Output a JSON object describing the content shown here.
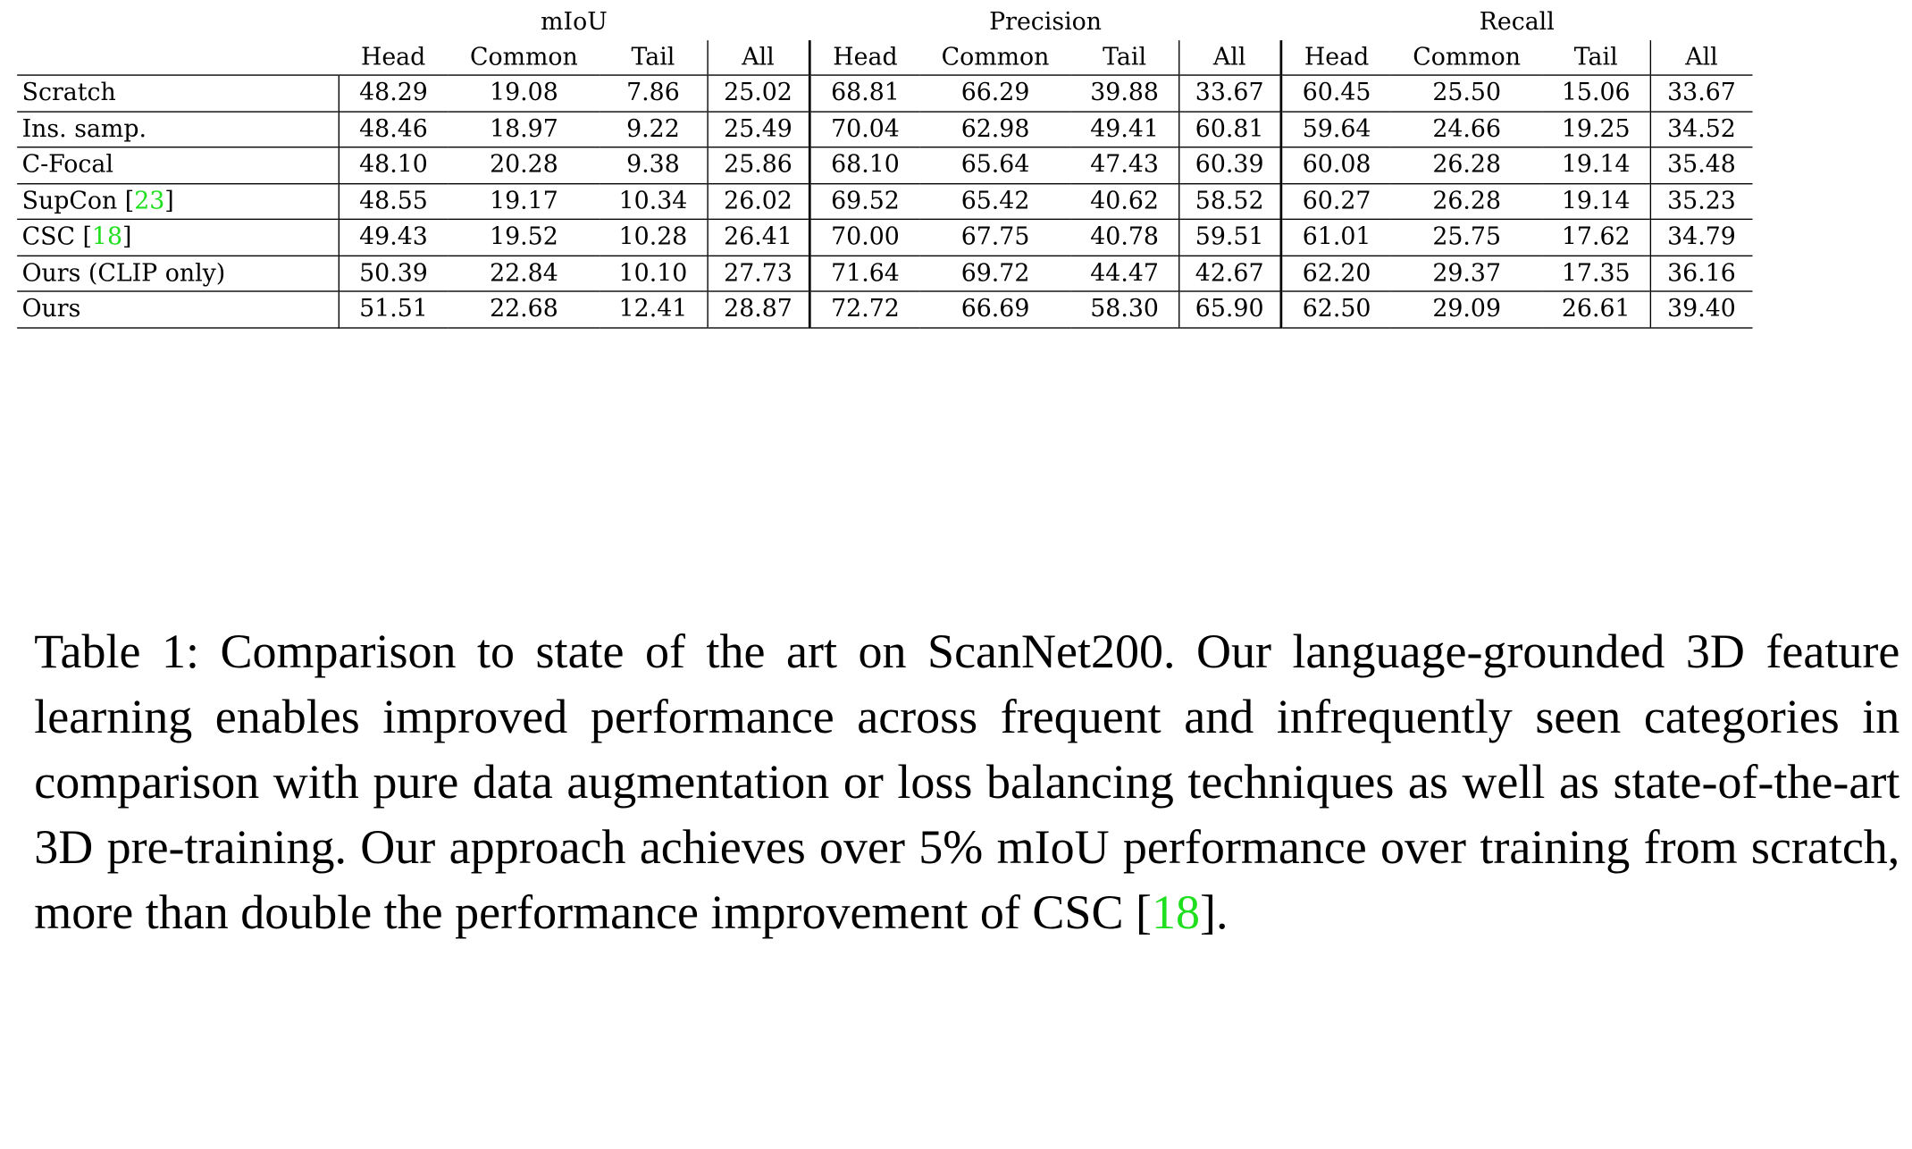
{
  "table": {
    "groups": [
      "mIoU",
      "Precision",
      "Recall"
    ],
    "subheaders": [
      "Head",
      "Common",
      "Tail",
      "All",
      "Head",
      "Common",
      "Tail",
      "All",
      "Head",
      "Common",
      "Tail",
      "All"
    ],
    "rows": [
      {
        "method": "Scratch",
        "cite": "",
        "bold_name": false,
        "values": [
          "48.29",
          "19.08",
          "7.86",
          "25.02",
          "68.81",
          "66.29",
          "39.88",
          "33.67",
          "60.45",
          "25.50",
          "15.06",
          "33.67"
        ],
        "bold": []
      },
      {
        "method": "Ins. samp.",
        "cite": "",
        "bold_name": false,
        "values": [
          "48.46",
          "18.97",
          "9.22",
          "25.49",
          "70.04",
          "62.98",
          "49.41",
          "60.81",
          "59.64",
          "24.66",
          "19.25",
          "34.52"
        ],
        "bold": []
      },
      {
        "method": "C-Focal",
        "cite": "",
        "bold_name": false,
        "values": [
          "48.10",
          "20.28",
          "9.38",
          "25.86",
          "68.10",
          "65.64",
          "47.43",
          "60.39",
          "60.08",
          "26.28",
          "19.14",
          "35.48"
        ],
        "bold": []
      },
      {
        "method": "SupCon",
        "cite": "23",
        "bold_name": false,
        "values": [
          "48.55",
          "19.17",
          "10.34",
          "26.02",
          "69.52",
          "65.42",
          "40.62",
          "58.52",
          "60.27",
          "26.28",
          "19.14",
          "35.23"
        ],
        "bold": []
      },
      {
        "method": "CSC",
        "cite": "18",
        "bold_name": false,
        "values": [
          "49.43",
          "19.52",
          "10.28",
          "26.41",
          "70.00",
          "67.75",
          "40.78",
          "59.51",
          "61.01",
          "25.75",
          "17.62",
          "34.79"
        ],
        "bold": []
      },
      {
        "method": "Ours (CLIP only)",
        "cite": "",
        "bold_name": false,
        "values": [
          "50.39",
          "22.84",
          "10.10",
          "27.73",
          "71.64",
          "69.72",
          "44.47",
          "42.67",
          "62.20",
          "29.37",
          "17.35",
          "36.16"
        ],
        "bold": [
          1,
          5,
          9
        ]
      },
      {
        "method": "Ours",
        "cite": "",
        "bold_name": true,
        "values": [
          "51.51",
          "22.68",
          "12.41",
          "28.87",
          "72.72",
          "66.69",
          "58.30",
          "65.90",
          "62.50",
          "29.09",
          "26.61",
          "39.40"
        ],
        "bold": [
          0,
          2,
          3,
          4,
          6,
          7,
          8,
          10,
          11
        ]
      }
    ]
  },
  "caption": {
    "text_a": "Table 1: Comparison to state of the art on ScanNet200. Our language-grounded 3D feature learning enables improved performance across frequent and infre­quently seen categories in comparison with pure data augmentation or loss balancing techniques as well as state-of-the-art 3D pre-training. Our approach achieves over 5% mIoU performance over training from scratch, more than dou­ble the performance improvement of CSC [",
    "cite": "18",
    "text_b": "]."
  }
}
